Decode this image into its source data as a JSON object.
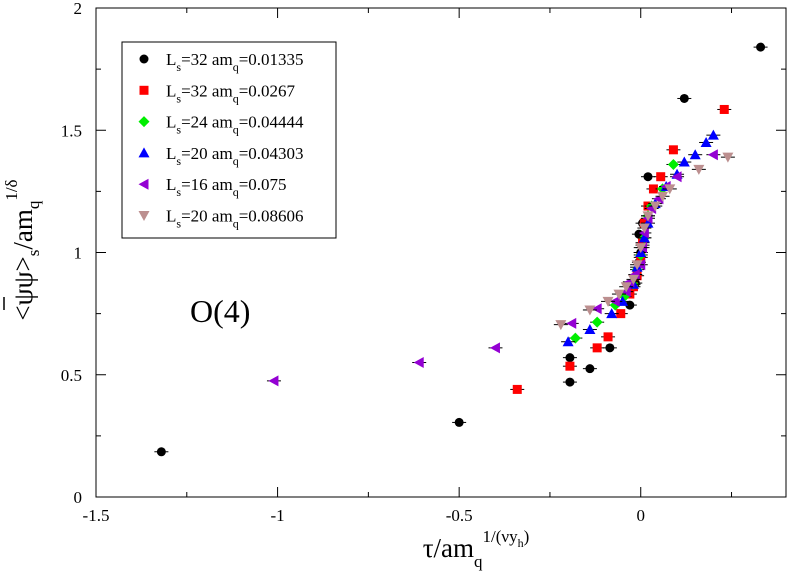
{
  "chart_data": {
    "type": "scatter",
    "annotation": "O(4)",
    "xlabel": {
      "main": "τ/am",
      "sub": "q",
      "sup": "1/(νy",
      "sup_sub": "h",
      "sup_close": ")"
    },
    "ylabel": {
      "main": "<ψψ>",
      "sub": "s",
      "mid": "/am",
      "sub2": "q",
      "sup": "1/δ"
    },
    "xlim": [
      -1.5,
      0.4
    ],
    "ylim": [
      0,
      2
    ],
    "x_ticks": [
      {
        "value": -1.5,
        "label": "-1.5"
      },
      {
        "value": -1,
        "label": "-1"
      },
      {
        "value": -0.5,
        "label": "-0.5"
      },
      {
        "value": 0,
        "label": "0"
      }
    ],
    "y_ticks": [
      {
        "value": 0,
        "label": "0"
      },
      {
        "value": 0.5,
        "label": "0.5"
      },
      {
        "value": 1,
        "label": "1"
      },
      {
        "value": 1.5,
        "label": "1.5"
      },
      {
        "value": 2,
        "label": "2"
      }
    ],
    "series": [
      {
        "name_L": "L",
        "name_Ls": "s",
        "name_Lval": "=32",
        "name_am": "am",
        "name_amq": "q",
        "name_amval": "=0.01335",
        "marker": "circle",
        "color": "#000000",
        "points": [
          [
            -1.32,
            0.185
          ],
          [
            -0.5,
            0.305
          ],
          [
            -0.195,
            0.47
          ],
          [
            -0.14,
            0.525
          ],
          [
            -0.195,
            0.57
          ],
          [
            -0.085,
            0.61
          ],
          [
            -0.03,
            0.785
          ],
          [
            -0.015,
            0.875
          ],
          [
            -0.005,
            0.96
          ],
          [
            0.0,
            1.0
          ],
          [
            0.005,
            1.03
          ],
          [
            -0.005,
            1.075
          ],
          [
            0.005,
            1.12
          ],
          [
            0.02,
            1.31
          ],
          [
            0.12,
            1.63
          ],
          [
            0.33,
            1.84
          ]
        ]
      },
      {
        "name_L": "L",
        "name_Ls": "s",
        "name_Lval": "=32",
        "name_am": "am",
        "name_amq": "q",
        "name_amval": "=0.0267",
        "marker": "square",
        "color": "#ff0000",
        "points": [
          [
            -0.34,
            0.44
          ],
          [
            -0.195,
            0.535
          ],
          [
            -0.12,
            0.61
          ],
          [
            -0.09,
            0.655
          ],
          [
            -0.055,
            0.75
          ],
          [
            -0.03,
            0.83
          ],
          [
            -0.02,
            0.86
          ],
          [
            -0.01,
            0.905
          ],
          [
            0.0,
            0.98
          ],
          [
            0.005,
            1.04
          ],
          [
            0.01,
            1.12
          ],
          [
            0.02,
            1.19
          ],
          [
            0.035,
            1.26
          ],
          [
            0.055,
            1.31
          ],
          [
            0.09,
            1.42
          ],
          [
            0.23,
            1.585
          ]
        ]
      },
      {
        "name_L": "L",
        "name_Ls": "s",
        "name_Lval": "=24",
        "name_am": "am",
        "name_amq": "q",
        "name_amval": "=0.04444",
        "marker": "diamond",
        "color": "#00ee00",
        "points": [
          [
            -0.18,
            0.65
          ],
          [
            -0.12,
            0.715
          ],
          [
            -0.07,
            0.785
          ],
          [
            -0.045,
            0.82
          ],
          [
            -0.02,
            0.87
          ],
          [
            -0.01,
            0.93
          ],
          [
            0.0,
            0.99
          ],
          [
            0.01,
            1.06
          ],
          [
            0.02,
            1.15
          ],
          [
            0.03,
            1.19
          ],
          [
            0.06,
            1.26
          ],
          [
            0.09,
            1.36
          ]
        ]
      },
      {
        "name_L": "L",
        "name_Ls": "s",
        "name_Lval": "=20",
        "name_am": "am",
        "name_amq": "q",
        "name_amval": "=0.04303",
        "marker": "triangle-up",
        "color": "#0000ff",
        "points": [
          [
            -0.2,
            0.635
          ],
          [
            -0.14,
            0.685
          ],
          [
            -0.08,
            0.75
          ],
          [
            -0.05,
            0.8
          ],
          [
            -0.02,
            0.87
          ],
          [
            -0.01,
            0.94
          ],
          [
            0.0,
            1.0
          ],
          [
            0.01,
            1.06
          ],
          [
            0.02,
            1.12
          ],
          [
            0.04,
            1.2
          ],
          [
            0.07,
            1.27
          ],
          [
            0.1,
            1.32
          ],
          [
            0.12,
            1.37
          ],
          [
            0.15,
            1.4
          ],
          [
            0.18,
            1.45
          ],
          [
            0.2,
            1.48
          ]
        ]
      },
      {
        "name_L": "L",
        "name_Ls": "s",
        "name_Lval": "=16",
        "name_am": "am",
        "name_amq": "q",
        "name_amval": "=0.075",
        "marker": "triangle-left",
        "color": "#9400d3",
        "points": [
          [
            -1.01,
            0.475
          ],
          [
            -0.61,
            0.55
          ],
          [
            -0.4,
            0.61
          ],
          [
            -0.19,
            0.71
          ],
          [
            -0.12,
            0.77
          ],
          [
            -0.07,
            0.8
          ],
          [
            -0.04,
            0.84
          ],
          [
            -0.03,
            0.88
          ],
          [
            -0.015,
            0.91
          ],
          [
            0.0,
            0.95
          ],
          [
            0.005,
            1.02
          ],
          [
            0.01,
            1.08
          ],
          [
            0.02,
            1.14
          ],
          [
            0.03,
            1.18
          ],
          [
            0.05,
            1.22
          ],
          [
            0.07,
            1.27
          ],
          [
            0.1,
            1.31
          ],
          [
            0.2,
            1.4
          ]
        ]
      },
      {
        "name_L": "L",
        "name_Ls": "s",
        "name_Lval": "=20",
        "name_am": "am",
        "name_amq": "q",
        "name_amval": "=0.08606",
        "marker": "triangle-down",
        "color": "#bc8f8f",
        "points": [
          [
            -0.22,
            0.705
          ],
          [
            -0.14,
            0.765
          ],
          [
            -0.09,
            0.8
          ],
          [
            -0.06,
            0.83
          ],
          [
            -0.04,
            0.86
          ],
          [
            -0.02,
            0.89
          ],
          [
            -0.01,
            0.95
          ],
          [
            0.0,
            1.02
          ],
          [
            0.01,
            1.1
          ],
          [
            0.02,
            1.15
          ],
          [
            0.04,
            1.19
          ],
          [
            0.06,
            1.23
          ],
          [
            0.08,
            1.26
          ],
          [
            0.16,
            1.34
          ],
          [
            0.24,
            1.39
          ]
        ]
      }
    ]
  }
}
